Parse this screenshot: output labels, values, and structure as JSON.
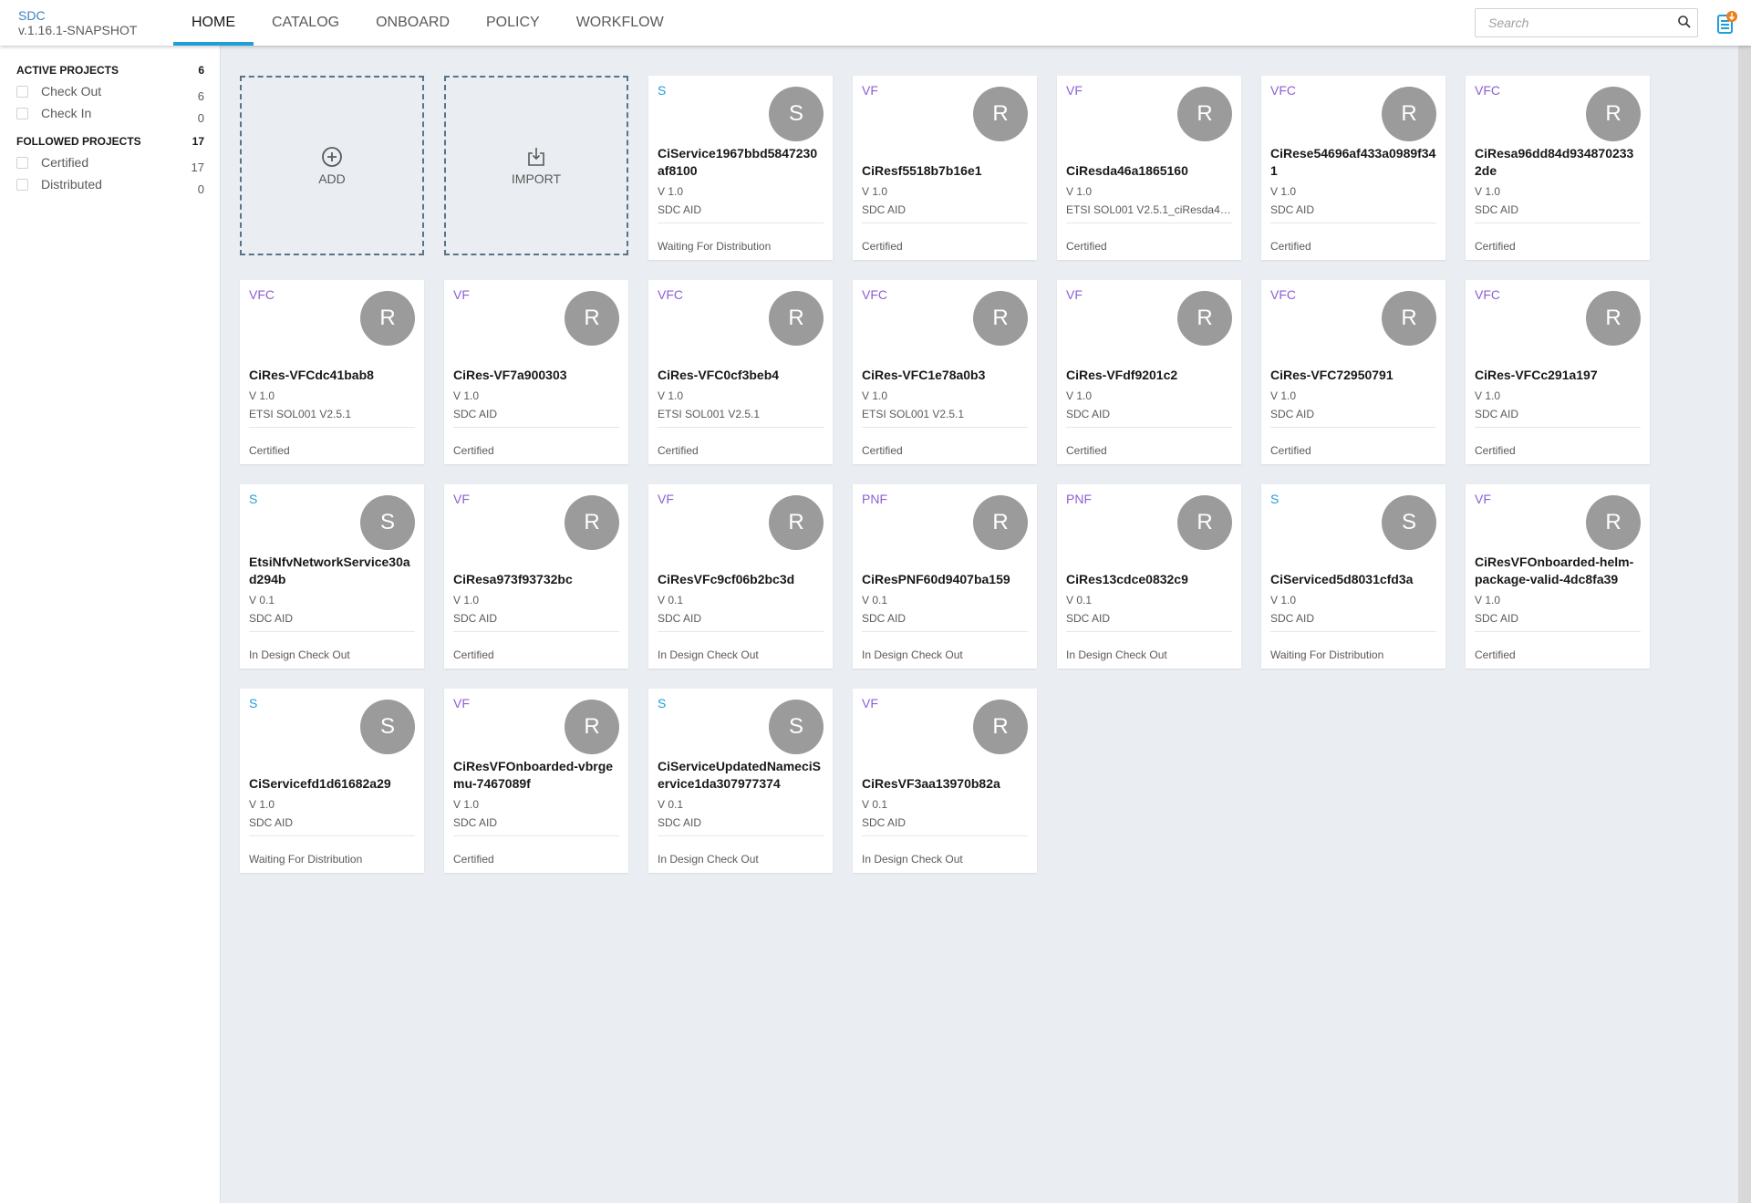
{
  "header": {
    "app_title": "SDC",
    "version": "v.1.16.1-SNAPSHOT",
    "tabs": [
      {
        "label": "HOME",
        "active": true
      },
      {
        "label": "CATALOG"
      },
      {
        "label": "ONBOARD"
      },
      {
        "label": "POLICY"
      },
      {
        "label": "WORKFLOW"
      }
    ],
    "search_placeholder": "Search",
    "search_icon": "search-icon",
    "notification_icon": "download-list-icon"
  },
  "colors": {
    "accent": "#1f9fd8",
    "service_type": "#1f9fd8",
    "resource_type": "#8b5fd6",
    "avatar": "#9b9b9b",
    "brand": "#3d82c0",
    "notification_badge": "#f07d1a"
  },
  "sidebar": {
    "active": {
      "title": "ACTIVE PROJECTS",
      "count": "6",
      "items": [
        {
          "label": "Check Out",
          "count": "6"
        },
        {
          "label": "Check In",
          "count": "0"
        }
      ]
    },
    "followed": {
      "title": "FOLLOWED PROJECTS",
      "count": "17",
      "items": [
        {
          "label": "Certified",
          "count": "17"
        },
        {
          "label": "Distributed",
          "count": "0"
        }
      ]
    }
  },
  "actions": {
    "add_label": "ADD",
    "import_label": "IMPORT"
  },
  "cards": [
    {
      "type": "S",
      "avatar": "S",
      "name": "CiService1967bbd5847230af8100",
      "version": "V 1.0",
      "aid": "SDC AID",
      "status": "Waiting For Distribution"
    },
    {
      "type": "VF",
      "avatar": "R",
      "name": "CiResf5518b7b16e1",
      "version": "V 1.0",
      "aid": "SDC AID",
      "status": "Certified"
    },
    {
      "type": "VF",
      "avatar": "R",
      "name": "CiResda46a1865160",
      "version": "V 1.0",
      "aid": "ETSI SOL001 V2.5.1_ciResda46...",
      "status": "Certified"
    },
    {
      "type": "VFC",
      "avatar": "R",
      "name": "CiRese54696af433a0989f341",
      "version": "V 1.0",
      "aid": "SDC AID",
      "status": "Certified"
    },
    {
      "type": "VFC",
      "avatar": "R",
      "name": "CiResa96dd84d9348702332de",
      "version": "V 1.0",
      "aid": "SDC AID",
      "status": "Certified"
    },
    {
      "type": "VFC",
      "avatar": "R",
      "name": "CiRes-VFCdc41bab8",
      "version": "V 1.0",
      "aid": "ETSI SOL001 V2.5.1",
      "status": "Certified"
    },
    {
      "type": "VF",
      "avatar": "R",
      "name": "CiRes-VF7a900303",
      "version": "V 1.0",
      "aid": "SDC AID",
      "status": "Certified"
    },
    {
      "type": "VFC",
      "avatar": "R",
      "name": "CiRes-VFC0cf3beb4",
      "version": "V 1.0",
      "aid": "ETSI SOL001 V2.5.1",
      "status": "Certified"
    },
    {
      "type": "VFC",
      "avatar": "R",
      "name": "CiRes-VFC1e78a0b3",
      "version": "V 1.0",
      "aid": "ETSI SOL001 V2.5.1",
      "status": "Certified"
    },
    {
      "type": "VF",
      "avatar": "R",
      "name": "CiRes-VFdf9201c2",
      "version": "V 1.0",
      "aid": "SDC AID",
      "status": "Certified"
    },
    {
      "type": "VFC",
      "avatar": "R",
      "name": "CiRes-VFC72950791",
      "version": "V 1.0",
      "aid": "SDC AID",
      "status": "Certified"
    },
    {
      "type": "VFC",
      "avatar": "R",
      "name": "CiRes-VFCc291a197",
      "version": "V 1.0",
      "aid": "SDC AID",
      "status": "Certified"
    },
    {
      "type": "S",
      "avatar": "S",
      "name": "EtsiNfvNetworkService30ad294b",
      "version": "V 0.1",
      "aid": "SDC AID",
      "status": "In Design Check Out"
    },
    {
      "type": "VF",
      "avatar": "R",
      "name": "CiResa973f93732bc",
      "version": "V 1.0",
      "aid": "SDC AID",
      "status": "Certified"
    },
    {
      "type": "VF",
      "avatar": "R",
      "name": "CiResVFc9cf06b2bc3d",
      "version": "V 0.1",
      "aid": "SDC AID",
      "status": "In Design Check Out"
    },
    {
      "type": "PNF",
      "avatar": "R",
      "name": "CiResPNF60d9407ba159",
      "version": "V 0.1",
      "aid": "SDC AID",
      "status": "In Design Check Out"
    },
    {
      "type": "PNF",
      "avatar": "R",
      "name": "CiRes13cdce0832c9",
      "version": "V 0.1",
      "aid": "SDC AID",
      "status": "In Design Check Out"
    },
    {
      "type": "S",
      "avatar": "S",
      "name": "CiServiced5d8031cfd3a",
      "version": "V 1.0",
      "aid": "SDC AID",
      "status": "Waiting For Distribution"
    },
    {
      "type": "VF",
      "avatar": "R",
      "name": "CiResVFOnboarded-helm-package-valid-4dc8fa39",
      "version": "V 1.0",
      "aid": "SDC AID",
      "status": "Certified"
    },
    {
      "type": "S",
      "avatar": "S",
      "name": "CiServicefd1d61682a29",
      "version": "V 1.0",
      "aid": "SDC AID",
      "status": "Waiting For Distribution"
    },
    {
      "type": "VF",
      "avatar": "R",
      "name": "CiResVFOnboarded-vbrgemu-7467089f",
      "version": "V 1.0",
      "aid": "SDC AID",
      "status": "Certified"
    },
    {
      "type": "S",
      "avatar": "S",
      "name": "CiServiceUpdatedNameciService1da307977374",
      "version": "V 0.1",
      "aid": "SDC AID",
      "status": "In Design Check Out"
    },
    {
      "type": "VF",
      "avatar": "R",
      "name": "CiResVF3aa13970b82a",
      "version": "V 0.1",
      "aid": "SDC AID",
      "status": "In Design Check Out"
    }
  ]
}
